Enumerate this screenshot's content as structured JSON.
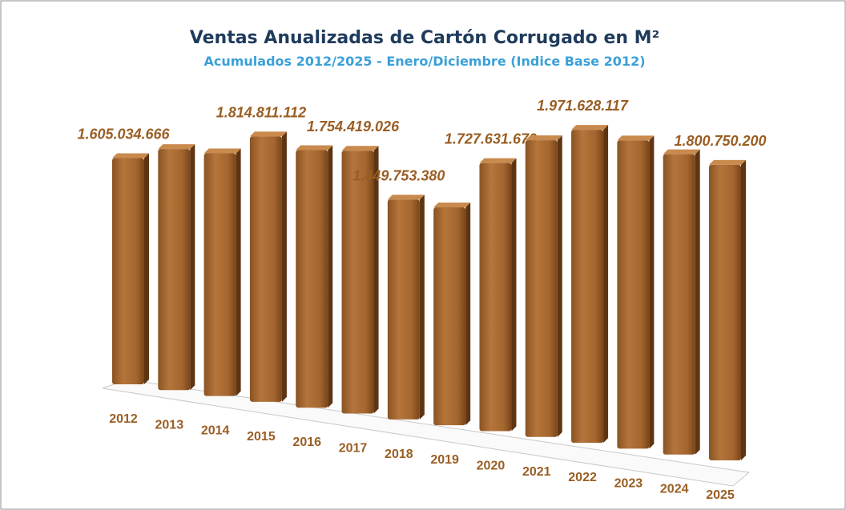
{
  "chart_data": {
    "type": "bar3d",
    "title": "Ventas Anualizadas de Cartón Corrugado en M²",
    "subtitle": "Acumulados 2012/2025 -  Enero/Diciembre (Indice Base 2012)",
    "categories": [
      "2012",
      "2013",
      "2014",
      "2015",
      "2016",
      "2017",
      "2018",
      "2019",
      "2020",
      "2021",
      "2022",
      "2023",
      "2024",
      "2025"
    ],
    "values": [
      1605034666,
      1690000000,
      1680000000,
      1814811112,
      1740000000,
      1754419026,
      1449753380,
      1420000000,
      1727631670,
      1890000000,
      1971628117,
      1920000000,
      1850000000,
      1800750200
    ],
    "value_labels": [
      "1.605.034.666",
      null,
      null,
      "1.814.811.112",
      null,
      "1.754.419.026",
      "1.449.753.380",
      null,
      "1.727.631.670",
      null,
      "1.971.628.117",
      null,
      null,
      "1.800.750.200"
    ],
    "color": "#b0703a"
  }
}
